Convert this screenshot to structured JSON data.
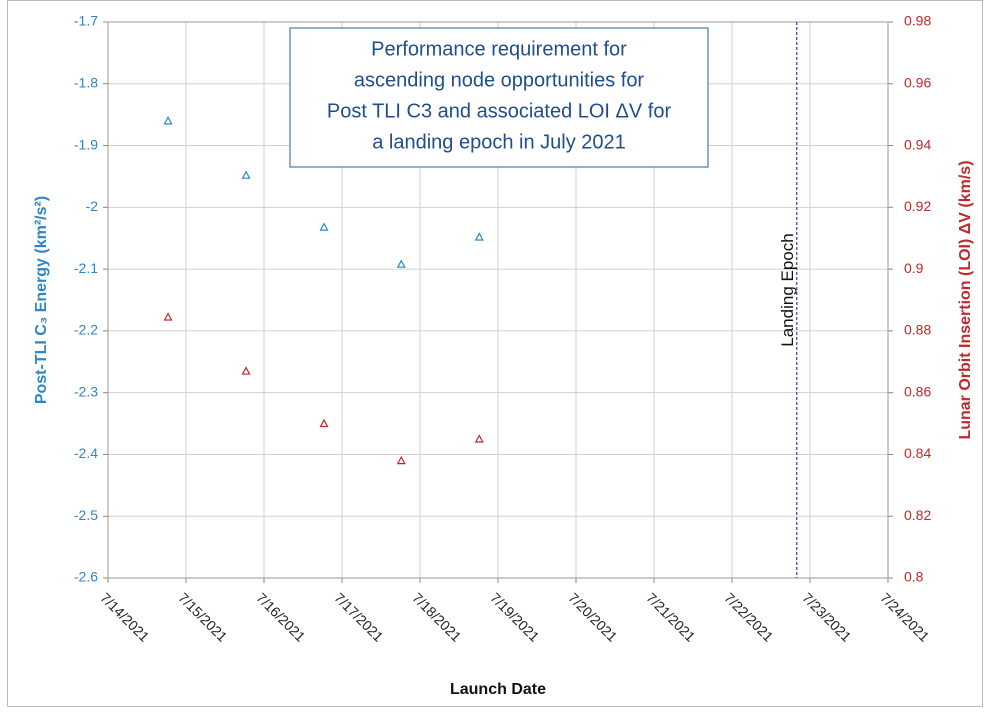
{
  "chart_data": {
    "type": "scatter",
    "title_lines": [
      "Performance requirement for",
      "ascending node opportunities for",
      "Post TLI C3 and associated LOI ΔV for",
      "a landing epoch in July 2021"
    ],
    "xlabel": "Launch Date",
    "ylabel": "Post-TLI C₃ Energy (km²/s²)",
    "y2label": "Lunar Orbit Insertion (LOI) ΔV (km/s)",
    "xlim": [
      44391,
      44401
    ],
    "xticks": [
      {
        "value": 44391,
        "label": "7/14/2021"
      },
      {
        "value": 44392,
        "label": "7/15/2021"
      },
      {
        "value": 44393,
        "label": "7/16/2021"
      },
      {
        "value": 44394,
        "label": "7/17/2021"
      },
      {
        "value": 44395,
        "label": "7/18/2021"
      },
      {
        "value": 44396,
        "label": "7/19/2021"
      },
      {
        "value": 44397,
        "label": "7/20/2021"
      },
      {
        "value": 44398,
        "label": "7/21/2021"
      },
      {
        "value": 44399,
        "label": "7/22/2021"
      },
      {
        "value": 44400,
        "label": "7/23/2021"
      },
      {
        "value": 44401,
        "label": "7/24/2021"
      }
    ],
    "ylim": [
      -2.6,
      -1.7
    ],
    "yticks": [
      -2.6,
      -2.5,
      -2.4,
      -2.3,
      -2.2,
      -2.1,
      -2,
      -1.9,
      -1.8,
      -1.7
    ],
    "y2lim": [
      0.8,
      0.98
    ],
    "y2ticks": [
      0.8,
      0.82,
      0.84,
      0.86,
      0.88,
      0.9,
      0.92,
      0.94,
      0.96,
      0.98
    ],
    "grid": true,
    "series": [
      {
        "color": "#2e86c8",
        "x": [
          44391.77,
          44392.77,
          44393.77,
          44394.76,
          44395.76
        ],
        "values": [
          -1.86,
          -1.948,
          -2.032,
          -2.092,
          -2.048
        ]
      },
      {
        "color": "#c0282d",
        "axis": "y2",
        "x": [
          44391.77,
          44392.77,
          44393.77,
          44394.76,
          44395.76
        ],
        "values": [
          0.8845,
          0.867,
          0.85,
          0.838,
          0.845
        ]
      }
    ],
    "annotation": {
      "x": 44399.83,
      "label": "Landing Epoch",
      "color": "#6a3aa0"
    }
  }
}
